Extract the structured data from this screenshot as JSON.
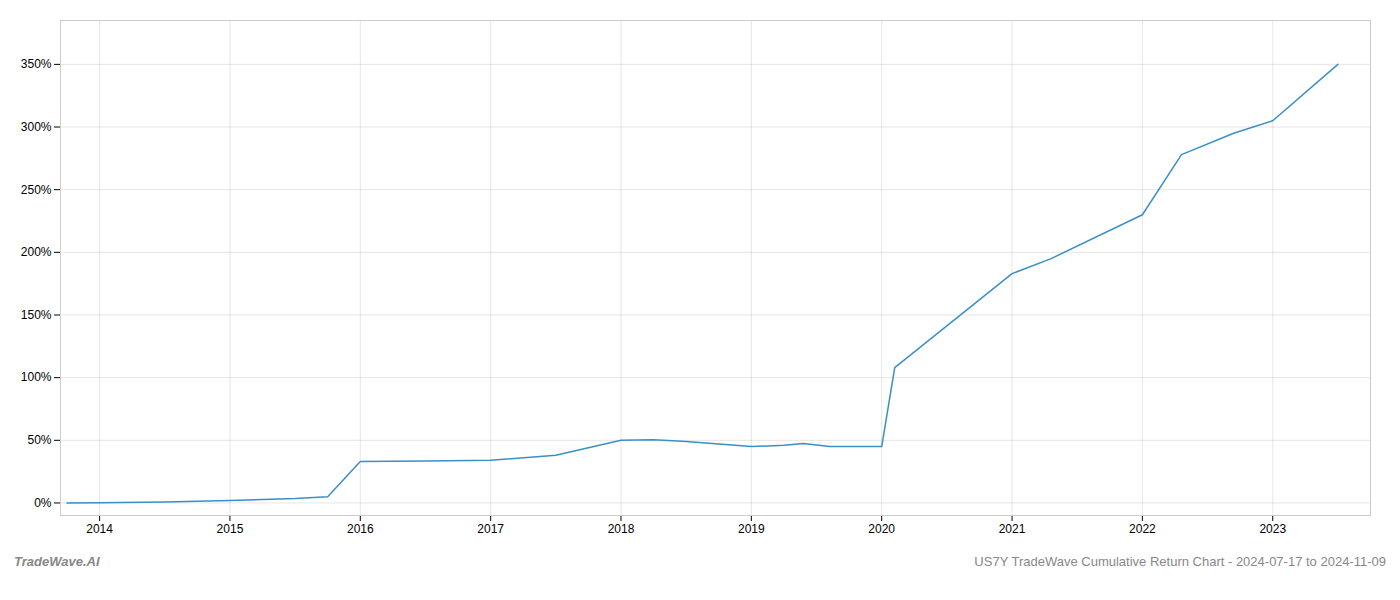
{
  "chart_data": {
    "type": "line",
    "title": "US7Y TradeWave Cumulative Return Chart - 2024-07-17 to 2024-11-09",
    "annotations": [
      "TradeWave.AI"
    ],
    "x": [
      2013.75,
      2014.0,
      2014.5,
      2015.0,
      2015.5,
      2015.75,
      2016.0,
      2016.5,
      2017.0,
      2017.5,
      2018.0,
      2018.25,
      2018.5,
      2019.0,
      2019.25,
      2019.4,
      2019.6,
      2020.0,
      2020.1,
      2021.0,
      2021.3,
      2022.0,
      2022.3,
      2022.7,
      2023.0,
      2023.5
    ],
    "values": [
      0.0,
      0.2,
      0.8,
      2.0,
      3.5,
      5.0,
      33.0,
      33.5,
      34.0,
      38.0,
      50.0,
      50.5,
      49.0,
      45.0,
      46.0,
      47.5,
      45.0,
      45.0,
      108.0,
      183.0,
      195.0,
      230.0,
      278.0,
      295.0,
      305.0,
      350.0
    ],
    "color": "#3a8fc7",
    "xlim": [
      2013.7,
      2023.75
    ],
    "xticks": [
      2014,
      2015,
      2016,
      2017,
      2018,
      2019,
      2020,
      2021,
      2022,
      2023
    ],
    "ylim": [
      -10,
      385
    ],
    "yticks": [
      {
        "value": 0,
        "label": "0%"
      },
      {
        "value": 50,
        "label": "50%"
      },
      {
        "value": 100,
        "label": "100%"
      },
      {
        "value": 150,
        "label": "150%"
      },
      {
        "value": 200,
        "label": "200%"
      },
      {
        "value": 250,
        "label": "250%"
      },
      {
        "value": 300,
        "label": "300%"
      },
      {
        "value": 350,
        "label": "350%"
      }
    ],
    "grid": true
  }
}
